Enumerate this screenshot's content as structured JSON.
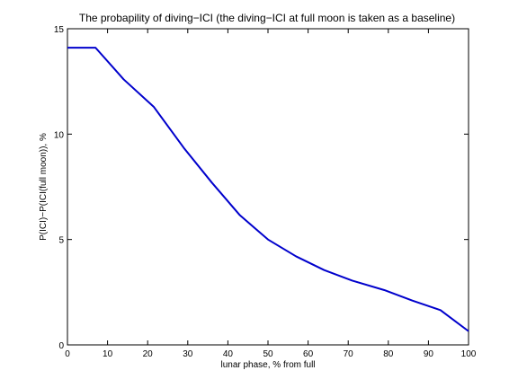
{
  "chart_data": {
    "type": "line",
    "title": "The probapility of diving−ICI (the diving−ICI at full moon is taken as a baseline)",
    "xlabel": "lunar phase, % from full",
    "ylabel": "P(ICI)−P(ICI(full moon)), %",
    "xlim": [
      0,
      100
    ],
    "ylim": [
      0,
      15
    ],
    "x_ticks": [
      0,
      10,
      20,
      30,
      40,
      50,
      60,
      70,
      80,
      90,
      100
    ],
    "y_ticks": [
      0,
      5,
      10,
      15
    ],
    "x_tick_labels": [
      "0",
      "10",
      "20",
      "30",
      "40",
      "50",
      "60",
      "70",
      "80",
      "90",
      "100"
    ],
    "y_tick_labels": [
      "0",
      "5",
      "10",
      "15"
    ],
    "grid": false,
    "legend": "none",
    "line_color": "#0000cc",
    "series": [
      {
        "x": [
          0,
          7,
          14,
          21.5,
          29,
          36,
          43,
          50,
          57,
          64,
          71,
          79,
          86,
          93,
          100
        ],
        "values": [
          14.1,
          14.1,
          12.6,
          11.3,
          9.35,
          7.7,
          6.15,
          5.0,
          4.2,
          3.55,
          3.05,
          2.6,
          2.1,
          1.65,
          0.65
        ]
      }
    ]
  }
}
